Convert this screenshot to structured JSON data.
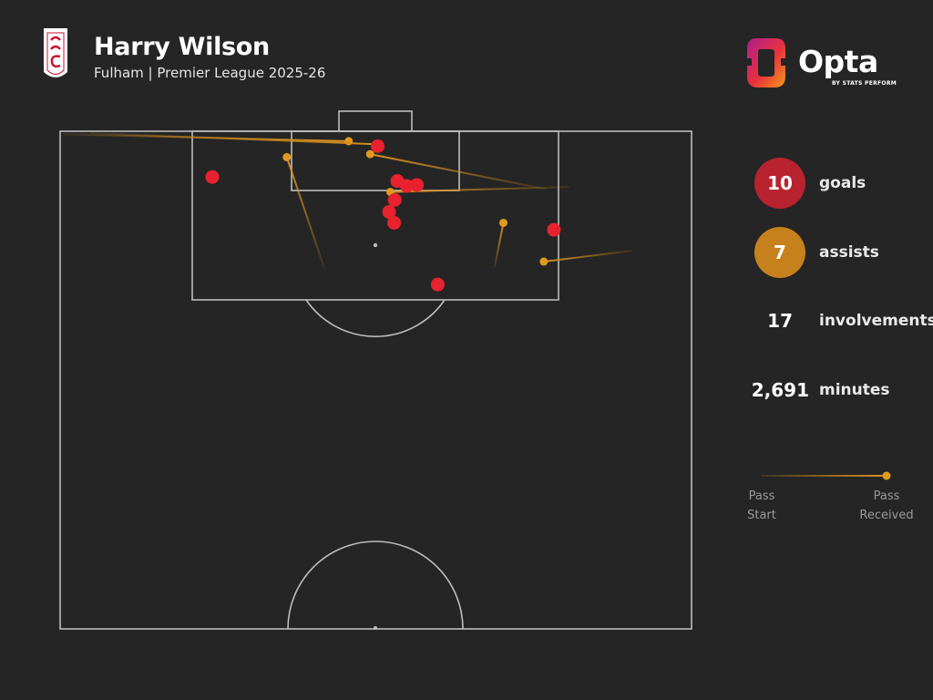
{
  "header": {
    "player_name": "Harry Wilson",
    "subtitle": "Fulham | Premier League 2025-26",
    "crest_icon": "fulham-crest-icon"
  },
  "brand": {
    "name": "Opta",
    "tagline": "BY STATS PERFORM"
  },
  "stats": {
    "goals": {
      "value": "10",
      "label": "goals",
      "color": "#b8232f"
    },
    "assists": {
      "value": "7",
      "label": "assists",
      "color": "#c7811c"
    },
    "involvements": {
      "value": "17",
      "label": "involvements"
    },
    "minutes": {
      "value": "2,691",
      "label": "minutes"
    }
  },
  "legend": {
    "start_label": "Pass\nStart",
    "end_label": "Pass\nReceived"
  },
  "colors": {
    "background": "#252525",
    "pitch_lines": "#bdbdbd",
    "goal_dot": "#e8222e",
    "assist_line": "#d9921e",
    "assist_dot": "#e09a20"
  },
  "chart_data": {
    "type": "scatter",
    "pitch": "attacking half, vertical orientation, coordinates in Opta units (x: 0-100 across width, y: 50-100 toward goal)",
    "goals": [
      {
        "x": 50.3,
        "y": 98.5
      },
      {
        "x": 53.4,
        "y": 95.0
      },
      {
        "x": 54.9,
        "y": 94.5
      },
      {
        "x": 56.5,
        "y": 94.6
      },
      {
        "x": 53.0,
        "y": 93.1
      },
      {
        "x": 52.1,
        "y": 91.9
      },
      {
        "x": 52.9,
        "y": 90.8
      },
      {
        "x": 24.1,
        "y": 95.4
      },
      {
        "x": 78.2,
        "y": 90.1
      },
      {
        "x": 59.8,
        "y": 84.6
      }
    ],
    "assists": [
      {
        "start_x": 0.5,
        "start_y": 99.7,
        "end_x": 45.7,
        "end_y": 99.0
      },
      {
        "start_x": 4.8,
        "start_y": 99.8,
        "end_x": 50.0,
        "end_y": 98.7
      },
      {
        "start_x": 76.8,
        "start_y": 94.2,
        "end_x": 49.1,
        "end_y": 97.7
      },
      {
        "start_x": 41.8,
        "start_y": 86.3,
        "end_x": 35.9,
        "end_y": 97.4
      },
      {
        "start_x": 80.6,
        "start_y": 94.4,
        "end_x": 52.3,
        "end_y": 93.9
      },
      {
        "start_x": 68.8,
        "start_y": 86.3,
        "end_x": 70.2,
        "end_y": 90.8
      },
      {
        "start_x": 90.6,
        "start_y": 88.0,
        "end_x": 76.6,
        "end_y": 86.9
      }
    ]
  }
}
